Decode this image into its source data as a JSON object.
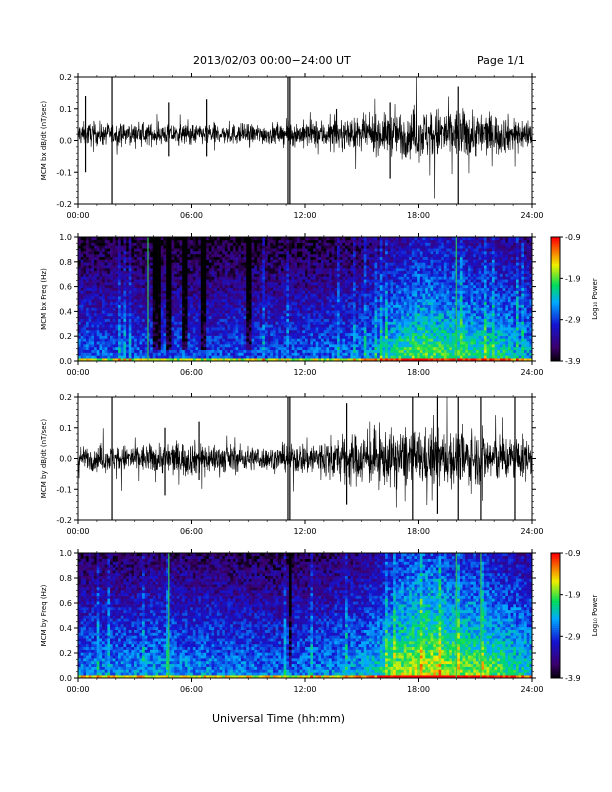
{
  "header": {
    "title": "2013/02/03  00:00−24:00 UT",
    "page": "Page 1/1"
  },
  "footer": {
    "xlabel": "Universal Time (hh:mm)"
  },
  "colors": {
    "trace": "#000000",
    "cbar_top": "#ff0000",
    "cbar_bottom": "#000000"
  },
  "chart_data": [
    {
      "type": "line",
      "title": "",
      "ylabel": "MCM bx dB/dt (nT/sec)",
      "xlabel": "",
      "xlim": [
        0,
        24
      ],
      "ylim": [
        -0.2,
        0.2
      ],
      "xticks": [
        "00:00",
        "06:00",
        "12:00",
        "18:00",
        "24:00"
      ],
      "yticks": [
        "-0.2",
        "-0.1",
        "0.0",
        "0.1",
        "0.2"
      ],
      "series": [
        {
          "x": [
            0,
            1,
            2,
            3,
            4,
            5,
            6,
            7,
            8,
            9,
            10,
            11,
            12,
            13,
            14,
            15,
            16,
            17,
            18,
            19,
            20,
            21,
            22,
            23,
            24
          ],
          "envelope": [
            0.04,
            0.04,
            0.035,
            0.035,
            0.035,
            0.035,
            0.035,
            0.035,
            0.035,
            0.035,
            0.035,
            0.04,
            0.045,
            0.05,
            0.05,
            0.055,
            0.065,
            0.075,
            0.085,
            0.09,
            0.085,
            0.08,
            0.07,
            0.06,
            0.05
          ],
          "center": 0.02
        }
      ],
      "spikes": [
        [
          0.4,
          0.14,
          -0.1
        ],
        [
          1.8,
          0.2,
          -0.2
        ],
        [
          4.8,
          0.12,
          -0.05
        ],
        [
          6.8,
          0.13,
          -0.05
        ],
        [
          11.1,
          0.2,
          -0.2
        ],
        [
          11.2,
          0.2,
          -0.2
        ],
        [
          16.5,
          0.12,
          -0.12
        ],
        [
          20.1,
          0.17,
          -0.2
        ]
      ]
    },
    {
      "type": "heatmap",
      "title": "",
      "ylabel": "MCM bx Freq (Hz)",
      "xlim": [
        0,
        24
      ],
      "ylim": [
        0.0,
        1.0
      ],
      "xticks": [
        "00:00",
        "06:00",
        "12:00",
        "18:00",
        "24:00"
      ],
      "yticks": [
        "0.0",
        "0.2",
        "0.4",
        "0.6",
        "0.8",
        "1.0"
      ],
      "colorbar": {
        "label": "Log₁₀ Power",
        "ticks": [
          "-0.9",
          "-1.9",
          "-2.9",
          "-3.9"
        ],
        "range": [
          -3.9,
          -0.9
        ]
      },
      "bright_lines": [
        3.7,
        20.0
      ],
      "dark_bands": [
        [
          3.9,
          4.4
        ],
        [
          4.6,
          5.0
        ],
        [
          5.5,
          5.8
        ],
        [
          6.5,
          6.8
        ],
        [
          8.9,
          9.2
        ]
      ],
      "activity": [
        0.25,
        0.24,
        0.24,
        0.24,
        0.22,
        0.22,
        0.22,
        0.22,
        0.23,
        0.23,
        0.23,
        0.23,
        0.24,
        0.25,
        0.26,
        0.28,
        0.33,
        0.4,
        0.45,
        0.44,
        0.42,
        0.4,
        0.38,
        0.36,
        0.32
      ]
    },
    {
      "type": "line",
      "title": "",
      "ylabel": "MCM by dB/dt (nT/sec)",
      "xlabel": "",
      "xlim": [
        0,
        24
      ],
      "ylim": [
        -0.2,
        0.2
      ],
      "xticks": [
        "00:00",
        "06:00",
        "12:00",
        "18:00",
        "24:00"
      ],
      "yticks": [
        "-0.2",
        "-0.1",
        "0.0",
        "0.1",
        "0.2"
      ],
      "series": [
        {
          "x": [
            0,
            1,
            2,
            3,
            4,
            5,
            6,
            7,
            8,
            9,
            10,
            11,
            12,
            13,
            14,
            15,
            16,
            17,
            18,
            19,
            20,
            21,
            22,
            23,
            24
          ],
          "envelope": [
            0.04,
            0.045,
            0.045,
            0.05,
            0.05,
            0.06,
            0.06,
            0.055,
            0.05,
            0.045,
            0.04,
            0.045,
            0.06,
            0.07,
            0.08,
            0.09,
            0.095,
            0.1,
            0.1,
            0.1,
            0.1,
            0.095,
            0.09,
            0.08,
            0.07
          ],
          "center": 0.0
        }
      ],
      "spikes": [
        [
          1.8,
          0.2,
          -0.2
        ],
        [
          4.6,
          0.1,
          -0.12
        ],
        [
          6.4,
          0.12,
          -0.07
        ],
        [
          11.1,
          0.2,
          -0.2
        ],
        [
          11.2,
          0.2,
          -0.2
        ],
        [
          14.2,
          0.18,
          -0.15
        ],
        [
          17.7,
          0.2,
          -0.2
        ],
        [
          19.0,
          0.2,
          -0.18
        ],
        [
          20.1,
          0.2,
          -0.2
        ],
        [
          21.3,
          0.2,
          -0.2
        ],
        [
          23.1,
          0.2,
          -0.2
        ]
      ]
    },
    {
      "type": "heatmap",
      "title": "",
      "ylabel": "MCM by Freq (Hz)",
      "xlim": [
        0,
        24
      ],
      "ylim": [
        0.0,
        1.0
      ],
      "xticks": [
        "00:00",
        "06:00",
        "12:00",
        "18:00",
        "24:00"
      ],
      "yticks": [
        "0.0",
        "0.2",
        "0.4",
        "0.6",
        "0.8",
        "1.0"
      ],
      "colorbar": {
        "label": "Log₁₀ Power",
        "ticks": [
          "-0.9",
          "-1.9",
          "-2.9",
          "-3.9"
        ],
        "range": [
          -3.9,
          -0.9
        ]
      },
      "bright_lines": [
        4.8,
        20.0,
        21.3
      ],
      "dark_bands": [
        [
          11.1,
          11.3
        ]
      ],
      "activity": [
        0.28,
        0.3,
        0.3,
        0.3,
        0.32,
        0.32,
        0.3,
        0.3,
        0.28,
        0.28,
        0.27,
        0.27,
        0.28,
        0.3,
        0.32,
        0.34,
        0.4,
        0.5,
        0.55,
        0.55,
        0.5,
        0.48,
        0.45,
        0.42,
        0.38
      ]
    }
  ]
}
